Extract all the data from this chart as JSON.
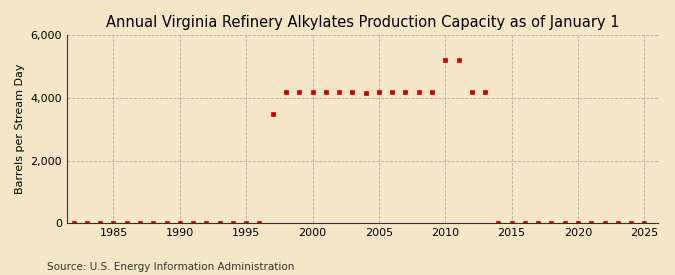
{
  "title": "Annual Virginia Refinery Alkylates Production Capacity as of January 1",
  "ylabel": "Barrels per Stream Day",
  "source": "Source: U.S. Energy Information Administration",
  "background_color": "#f5e6c8",
  "plot_background_color": "#f5e6c8",
  "marker_color": "#cc0000",
  "marker": "s",
  "markersize": 3.5,
  "xlim": [
    1981.5,
    2026
  ],
  "ylim": [
    0,
    6000
  ],
  "yticks": [
    0,
    2000,
    4000,
    6000
  ],
  "xticks": [
    1985,
    1990,
    1995,
    2000,
    2005,
    2010,
    2015,
    2020,
    2025
  ],
  "grid_color": "#aaaaaa",
  "data": {
    "1982": 0,
    "1983": 0,
    "1984": 0,
    "1985": 0,
    "1986": 0,
    "1987": 0,
    "1988": 0,
    "1989": 0,
    "1990": 0,
    "1991": 0,
    "1992": 0,
    "1993": 0,
    "1994": 0,
    "1995": 0,
    "1996": 0,
    "1997": 3500,
    "1998": 4200,
    "1999": 4200,
    "2000": 4200,
    "2001": 4200,
    "2002": 4200,
    "2003": 4200,
    "2004": 4150,
    "2005": 4200,
    "2006": 4200,
    "2007": 4200,
    "2008": 4200,
    "2009": 4200,
    "2010": 5200,
    "2011": 5200,
    "2012": 4200,
    "2013": 4200,
    "2014": 0,
    "2015": 0,
    "2016": 0,
    "2017": 0,
    "2018": 0,
    "2019": 0,
    "2020": 0,
    "2021": 0,
    "2022": 0,
    "2023": 0,
    "2024": 0,
    "2025": 0
  },
  "title_fontsize": 10.5,
  "title_fontweight": "normal",
  "ylabel_fontsize": 8,
  "tick_fontsize": 8,
  "source_fontsize": 7.5
}
